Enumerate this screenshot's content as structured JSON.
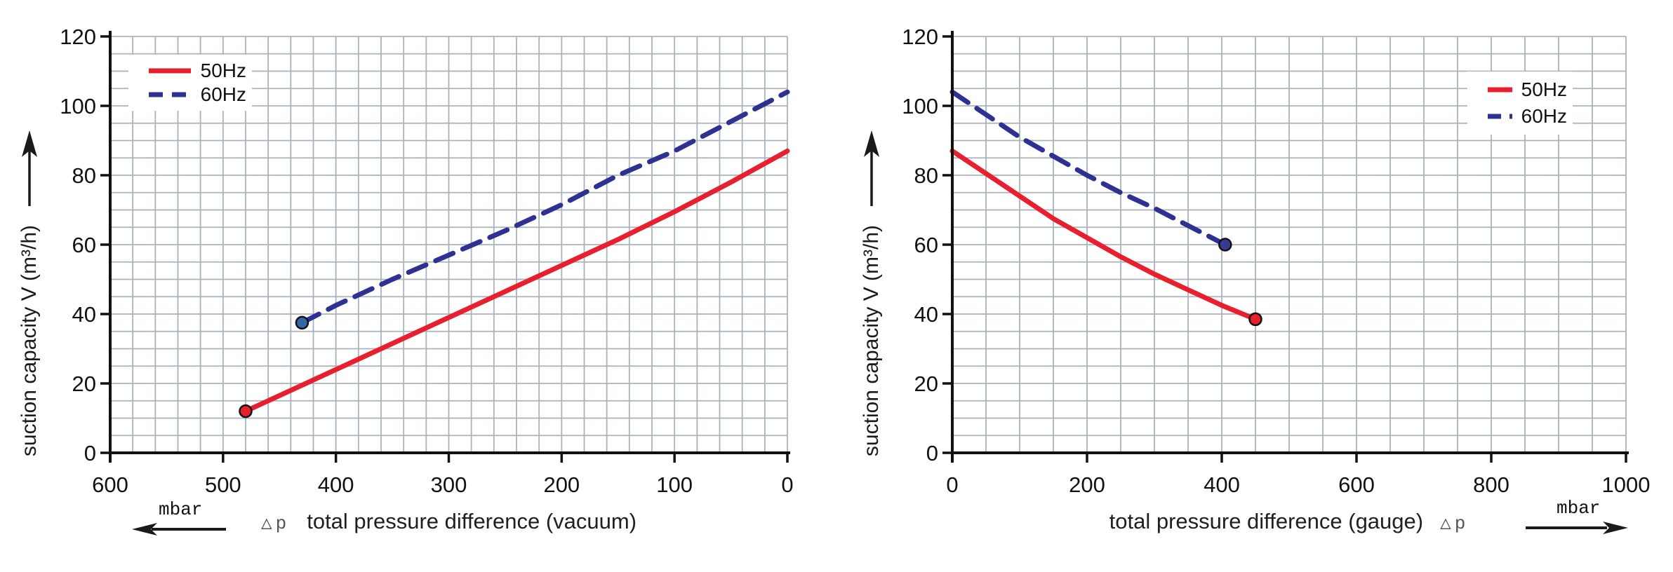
{
  "page": {
    "background": "#ffffff"
  },
  "colors": {
    "red_50hz": "#e8202d",
    "blue_60hz": "#2e3192",
    "grid": "#a9b2bd",
    "axis": "#111111",
    "text": "#1a1a1a",
    "delta_p_gray": "#555555"
  },
  "chart_data": [
    {
      "type": "line",
      "title": "",
      "ylabel": "suction capacity V (m³/h)",
      "xlabel": "total pressure difference (vacuum)",
      "xlabel_prefix": "△p",
      "x_unit": "mbar",
      "x_unit_arrow": "left",
      "xlim": [
        600,
        0
      ],
      "ylim": [
        0,
        120
      ],
      "x_major_ticks": [
        600,
        500,
        400,
        300,
        200,
        100,
        0
      ],
      "y_major_ticks": [
        0,
        20,
        40,
        60,
        80,
        100,
        120
      ],
      "x_minor_step": 20,
      "y_minor_step": 5,
      "grid": true,
      "legend_position": "top-left",
      "series": [
        {
          "name": "50Hz",
          "style": "solid",
          "color": "#e8202d",
          "marker": [
            480,
            12
          ],
          "marker_color": "#e8202d",
          "points": [
            [
              480,
              12
            ],
            [
              450,
              16.5
            ],
            [
              400,
              24
            ],
            [
              350,
              31.5
            ],
            [
              300,
              39
            ],
            [
              250,
              46.5
            ],
            [
              200,
              54
            ],
            [
              150,
              61.5
            ],
            [
              100,
              69.5
            ],
            [
              50,
              78
            ],
            [
              0,
              87
            ]
          ]
        },
        {
          "name": "60Hz",
          "style": "dashed",
          "color": "#2e3192",
          "marker": [
            430,
            37.5
          ],
          "marker_color": "#3566a8",
          "points": [
            [
              430,
              37.5
            ],
            [
              400,
              42.5
            ],
            [
              350,
              50
            ],
            [
              300,
              57
            ],
            [
              250,
              64
            ],
            [
              200,
              71.5
            ],
            [
              150,
              80
            ],
            [
              100,
              87
            ],
            [
              50,
              95.5
            ],
            [
              0,
              104
            ]
          ]
        }
      ]
    },
    {
      "type": "line",
      "title": "",
      "ylabel": "suction capacity V (m³/h)",
      "xlabel": "total pressure difference (gauge)",
      "xlabel_prefix": "△p",
      "x_unit": "mbar",
      "x_unit_arrow": "right",
      "xlim": [
        0,
        1000
      ],
      "ylim": [
        0,
        120
      ],
      "x_major_ticks": [
        0,
        200,
        400,
        600,
        800,
        1000
      ],
      "y_major_ticks": [
        0,
        20,
        40,
        60,
        80,
        100,
        120
      ],
      "x_minor_step": 50,
      "y_minor_step": 5,
      "grid": true,
      "legend_position": "top-right",
      "series": [
        {
          "name": "50Hz",
          "style": "solid",
          "color": "#e8202d",
          "marker": [
            450,
            38.5
          ],
          "marker_color": "#e8202d",
          "points": [
            [
              0,
              87
            ],
            [
              50,
              80.5
            ],
            [
              100,
              74
            ],
            [
              150,
              67.5
            ],
            [
              200,
              62
            ],
            [
              250,
              56.5
            ],
            [
              300,
              51.5
            ],
            [
              350,
              47
            ],
            [
              400,
              42.5
            ],
            [
              450,
              38.5
            ]
          ]
        },
        {
          "name": "60Hz",
          "style": "dashed",
          "color": "#2e3192",
          "marker": [
            405,
            60
          ],
          "marker_color": "#363c94",
          "points": [
            [
              0,
              104
            ],
            [
              50,
              97.5
            ],
            [
              100,
              91
            ],
            [
              150,
              85.5
            ],
            [
              200,
              80
            ],
            [
              250,
              75
            ],
            [
              300,
              70.5
            ],
            [
              350,
              65.5
            ],
            [
              405,
              60
            ]
          ]
        }
      ]
    }
  ]
}
